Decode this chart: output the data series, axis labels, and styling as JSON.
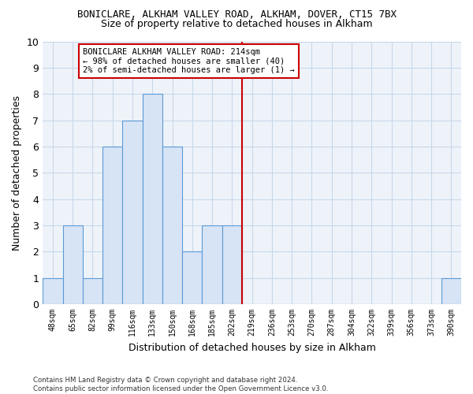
{
  "title1": "BONICLARE, ALKHAM VALLEY ROAD, ALKHAM, DOVER, CT15 7BX",
  "title2": "Size of property relative to detached houses in Alkham",
  "xlabel": "Distribution of detached houses by size in Alkham",
  "ylabel": "Number of detached properties",
  "categories": [
    "48sqm",
    "65sqm",
    "82sqm",
    "99sqm",
    "116sqm",
    "133sqm",
    "150sqm",
    "168sqm",
    "185sqm",
    "202sqm",
    "219sqm",
    "236sqm",
    "253sqm",
    "270sqm",
    "287sqm",
    "304sqm",
    "322sqm",
    "339sqm",
    "356sqm",
    "373sqm",
    "390sqm"
  ],
  "values": [
    1,
    3,
    1,
    6,
    7,
    8,
    6,
    2,
    3,
    3,
    0,
    0,
    0,
    0,
    0,
    0,
    0,
    0,
    0,
    0,
    1
  ],
  "bar_color": "#d6e4f5",
  "bar_edge_color": "#5b9bd5",
  "grid_color": "#c8d8e8",
  "redline_x": 9.5,
  "annotation_text": "BONICLARE ALKHAM VALLEY ROAD: 214sqm\n← 98% of detached houses are smaller (40)\n2% of semi-detached houses are larger (1) →",
  "annotation_box_color": "#ffffff",
  "annotation_border_color": "#cc0000",
  "redline_color": "#cc0000",
  "ylim": [
    0,
    10
  ],
  "yticks": [
    0,
    1,
    2,
    3,
    4,
    5,
    6,
    7,
    8,
    9,
    10
  ],
  "footnote": "Contains HM Land Registry data © Crown copyright and database right 2024.\nContains public sector information licensed under the Open Government Licence v3.0.",
  "background_color": "#eef3fa",
  "fig_background": "#ffffff"
}
